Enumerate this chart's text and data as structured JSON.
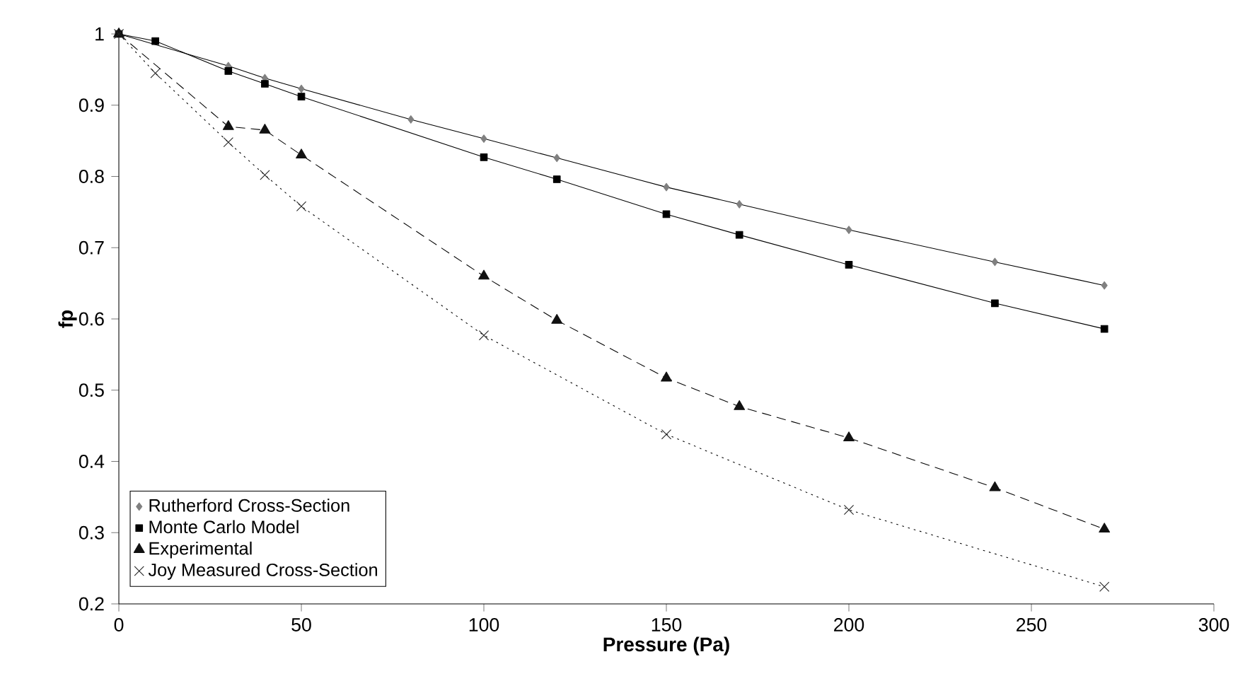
{
  "chart_data": {
    "type": "line",
    "xlabel": "Pressure (Pa)",
    "ylabel": "fp",
    "xlim": [
      0,
      300
    ],
    "ylim": [
      0.2,
      1
    ],
    "xticks": [
      0,
      50,
      100,
      150,
      200,
      250,
      300
    ],
    "yticks": [
      0.2,
      0.3,
      0.4,
      0.5,
      0.6,
      0.7,
      0.8,
      0.9,
      1
    ],
    "grid": false,
    "legend": "bottom left",
    "series": [
      {
        "name": "Rutherford Cross-Section",
        "color": "#808080",
        "marker": "diamond",
        "line_style": "solid",
        "x": [
          0,
          30,
          40,
          50,
          80,
          100,
          120,
          150,
          170,
          200,
          240,
          270
        ],
        "values": [
          1,
          0.955,
          0.938,
          0.923,
          0.88,
          0.853,
          0.826,
          0.785,
          0.761,
          0.725,
          0.68,
          0.647
        ]
      },
      {
        "name": "Monte Carlo Model",
        "color": "#000000",
        "marker": "square",
        "line_style": "solid",
        "x": [
          0,
          10,
          30,
          40,
          50,
          100,
          120,
          150,
          170,
          200,
          240,
          270
        ],
        "values": [
          1,
          0.99,
          0.948,
          0.93,
          0.912,
          0.827,
          0.796,
          0.747,
          0.718,
          0.676,
          0.622,
          0.586
        ]
      },
      {
        "name": "Experimental",
        "color": "#111111",
        "marker": "triangle",
        "line_style": "dashed",
        "x": [
          0,
          30,
          40,
          50,
          100,
          120,
          150,
          170,
          200,
          240,
          270
        ],
        "values": [
          1,
          0.87,
          0.865,
          0.83,
          0.66,
          0.598,
          0.517,
          0.477,
          0.433,
          0.363,
          0.305
        ]
      },
      {
        "name": "Joy Measured Cross-Section",
        "color": "#222222",
        "marker": "cross",
        "line_style": "dotted",
        "x": [
          0,
          10,
          30,
          40,
          50,
          100,
          150,
          200,
          270
        ],
        "values": [
          1,
          0.945,
          0.848,
          0.802,
          0.758,
          0.577,
          0.438,
          0.332,
          0.224
        ]
      }
    ]
  }
}
